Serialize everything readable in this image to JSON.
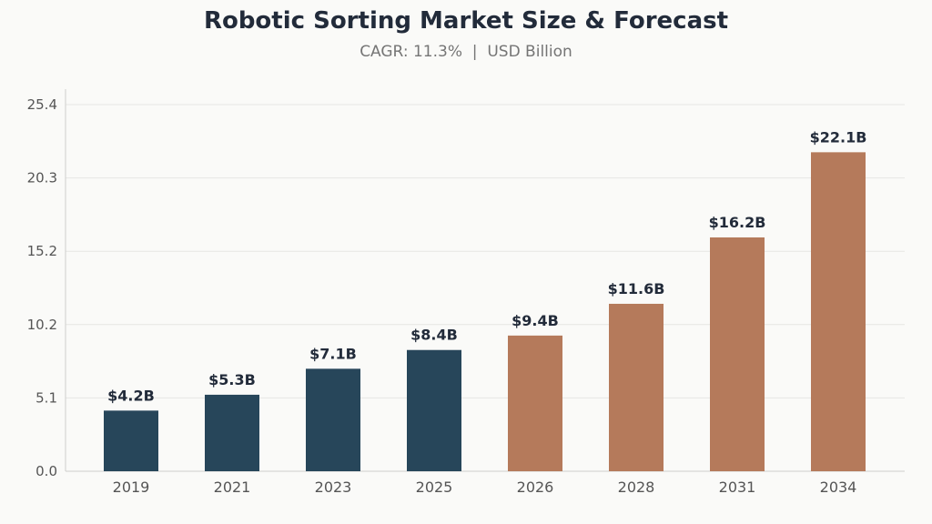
{
  "chart_data": {
    "type": "bar",
    "title": "Robotic Sorting Market Size & Forecast",
    "subtitle": "CAGR: 11.3%  |  USD Billion",
    "categories": [
      "2019",
      "2021",
      "2023",
      "2025",
      "2026",
      "2028",
      "2031",
      "2034"
    ],
    "values": [
      4.2,
      5.3,
      7.1,
      8.4,
      9.4,
      11.6,
      16.2,
      22.1
    ],
    "data_labels": [
      "$4.2B",
      "$5.3B",
      "$7.1B",
      "$8.4B",
      "$9.4B",
      "$11.6B",
      "$16.2B",
      "$22.1B"
    ],
    "xlabel": "",
    "ylabel": "",
    "ylim": [
      0,
      25.4
    ],
    "yticks": [
      "0.0",
      "5.1",
      "10.2",
      "15.2",
      "20.3",
      "25.4"
    ],
    "ytick_values": [
      0,
      5.08,
      10.16,
      15.24,
      20.32,
      25.4
    ],
    "grid": true,
    "historical_color": "#27465a",
    "forecast_color": "#b57a5b",
    "forecast_from_index": 4
  }
}
